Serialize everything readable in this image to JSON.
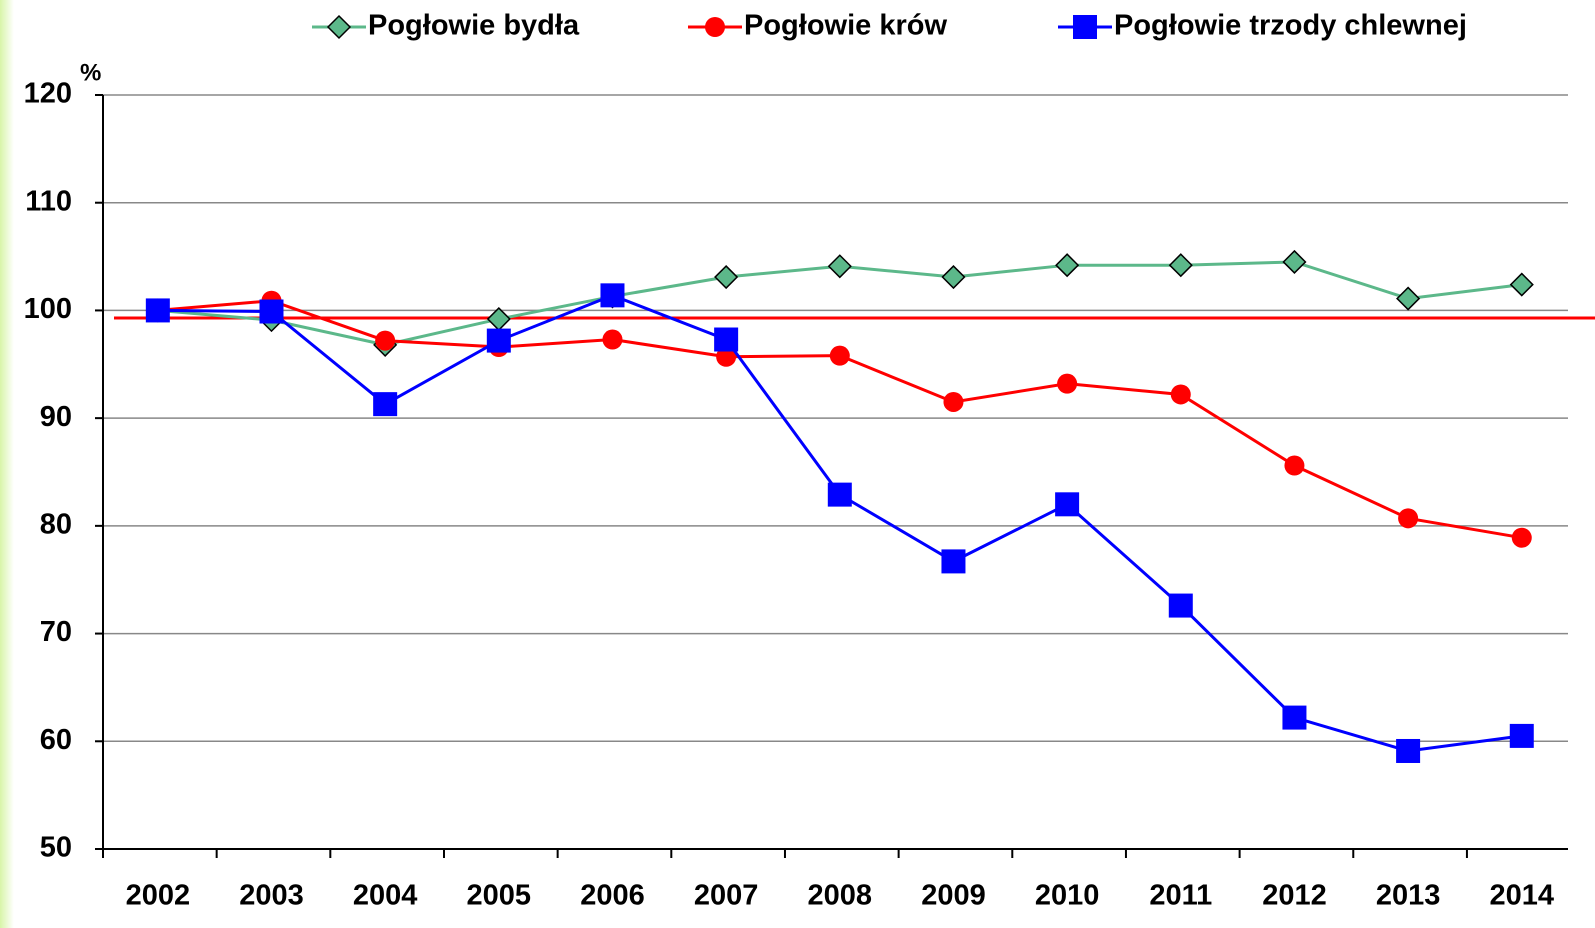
{
  "chart_data": {
    "type": "line",
    "y_label": "%",
    "categories": [
      "2002",
      "2003",
      "2004",
      "2005",
      "2006",
      "2007",
      "2008",
      "2009",
      "2010",
      "2011",
      "2012",
      "2013",
      "2014"
    ],
    "series": [
      {
        "name": "Pogłowie bydła",
        "color": "#5cb88a",
        "marker": "diamond",
        "values": [
          100,
          99.1,
          96.8,
          99.2,
          101.3,
          103.1,
          104.1,
          103.1,
          104.2,
          104.2,
          104.5,
          101.1,
          102.4
        ]
      },
      {
        "name": "Pogłowie krów",
        "color": "#ff0000",
        "marker": "circle",
        "values": [
          100,
          100.9,
          97.2,
          96.6,
          97.3,
          95.7,
          95.8,
          91.5,
          93.2,
          92.2,
          85.6,
          80.7,
          78.9
        ]
      },
      {
        "name": "Pogłowie trzody chlewnej",
        "color": "#0000ff",
        "marker": "square",
        "values": [
          100,
          99.9,
          91.3,
          97.2,
          101.4,
          97.3,
          82.9,
          76.7,
          82.0,
          72.6,
          62.2,
          59.1,
          60.5
        ]
      }
    ],
    "reference_value": 99.3,
    "reference_color": "#ff0000",
    "ylim": [
      50,
      120
    ],
    "yticks": [
      50,
      60,
      70,
      80,
      90,
      100,
      110,
      120
    ],
    "grid": true,
    "legend": "top"
  }
}
